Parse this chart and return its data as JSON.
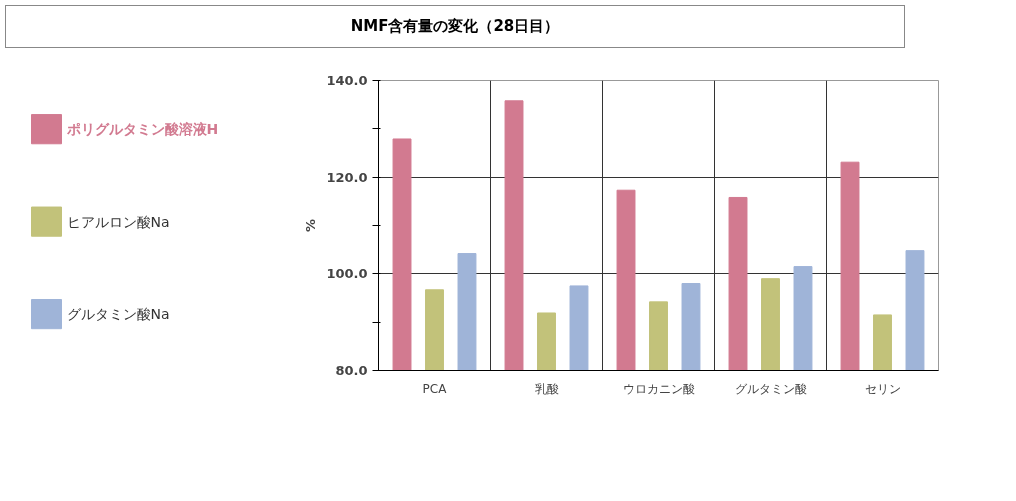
{
  "chart_data": {
    "type": "bar",
    "title": "NMF含有量の変化（28日目）",
    "ylabel": "%",
    "categories": [
      "PCA",
      "乳酸",
      "ウロカニン酸",
      "グルタミン酸",
      "セリン"
    ],
    "series": [
      {
        "name": "ポリグルタミン酸溶液H",
        "color": "#d27a90",
        "values": [
          127.9,
          135.8,
          117.3,
          115.8,
          123.1
        ]
      },
      {
        "name": "ヒアルロン酸Na",
        "color": "#c2c27a",
        "values": [
          96.7,
          91.9,
          94.2,
          99.0,
          91.5
        ]
      },
      {
        "name": "グルタミン酸Na",
        "color": "#9fb4d8",
        "values": [
          104.2,
          97.5,
          98.0,
          101.5,
          104.8
        ]
      }
    ],
    "ylim": [
      80,
      140
    ],
    "yticks": [
      {
        "value": 80,
        "label": "80.0"
      },
      {
        "value": 90,
        "label": null
      },
      {
        "value": 100,
        "label": "100.0"
      },
      {
        "value": 110,
        "label": null
      },
      {
        "value": 120,
        "label": "120.0"
      },
      {
        "value": 130,
        "label": null
      },
      {
        "value": 140,
        "label": "140.0"
      }
    ],
    "grid": true,
    "legend": "left"
  }
}
